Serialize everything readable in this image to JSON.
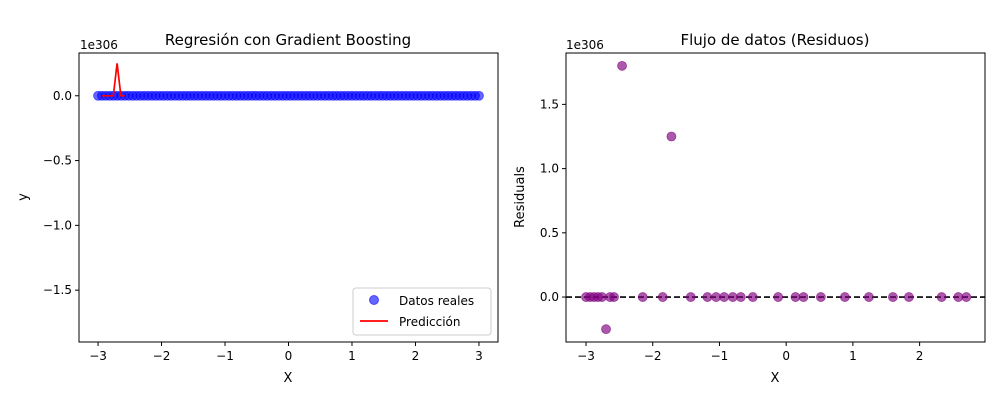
{
  "chart_data": [
    {
      "type": "scatter",
      "title": "Regresión con Gradient Boosting",
      "xlabel": "X",
      "ylabel": "y",
      "y_exponent_label": "1e306",
      "xlim": [
        -3.3,
        3.3
      ],
      "ylim": [
        -1.9,
        0.33
      ],
      "xticks": [
        -3,
        -2,
        -1,
        0,
        1,
        2,
        3
      ],
      "xtick_labels": [
        "−3",
        "−2",
        "−1",
        "0",
        "1",
        "2",
        "3"
      ],
      "yticks": [
        0.0,
        -0.5,
        -1.0,
        -1.5
      ],
      "ytick_labels": [
        "0.0",
        "−0.5",
        "−1.0",
        "−1.5"
      ],
      "legend_position": "lower-right",
      "series": [
        {
          "name": "Datos reales",
          "kind": "scatter",
          "color": "#0000ff",
          "x_start": -3.0,
          "x_end": 3.0,
          "count": 100,
          "y_value": 0.0
        },
        {
          "name": "Predicción",
          "kind": "line",
          "color": "#ff0000",
          "x": [
            -2.94,
            -2.88,
            -2.82,
            -2.76,
            -2.7,
            -2.64,
            -2.58
          ],
          "y": [
            0.0,
            0.0,
            0.0,
            0.0,
            0.25,
            0.0,
            0.0
          ]
        }
      ]
    },
    {
      "type": "scatter",
      "title": "Flujo de datos (Residuos)",
      "xlabel": "X",
      "ylabel": "Residuals",
      "y_exponent_label": "1e306",
      "xlim": [
        -3.3,
        2.98
      ],
      "ylim": [
        -0.35,
        1.9
      ],
      "xticks": [
        -3,
        -2,
        -1,
        0,
        1,
        2
      ],
      "xtick_labels": [
        "−3",
        "−2",
        "−1",
        "0",
        "1",
        "2"
      ],
      "yticks": [
        0.0,
        0.5,
        1.0,
        1.5
      ],
      "ytick_labels": [
        "0.0",
        "0.5",
        "1.0",
        "1.5"
      ],
      "reference_line_y": 0.0,
      "series": [
        {
          "name": "",
          "kind": "scatter",
          "color": "#800080",
          "x": [
            -3.0,
            -2.94,
            -2.88,
            -2.82,
            -2.76,
            -2.7,
            -2.64,
            -2.58,
            -2.46,
            -2.15,
            -1.85,
            -1.72,
            -1.43,
            -1.18,
            -1.05,
            -0.93,
            -0.8,
            -0.68,
            -0.5,
            -0.12,
            0.14,
            0.26,
            0.52,
            0.88,
            1.24,
            1.6,
            1.84,
            2.33,
            2.58,
            2.7
          ],
          "y": [
            0.0,
            0.0,
            0.0,
            0.0,
            0.0,
            -0.25,
            0.0,
            0.0,
            1.8,
            0.0,
            0.0,
            1.25,
            0.0,
            0.0,
            0.0,
            0.0,
            0.0,
            0.0,
            0.0,
            0.0,
            0.0,
            0.0,
            0.0,
            0.0,
            0.0,
            0.0,
            0.0,
            0.0,
            0.0,
            0.0
          ]
        }
      ]
    }
  ]
}
